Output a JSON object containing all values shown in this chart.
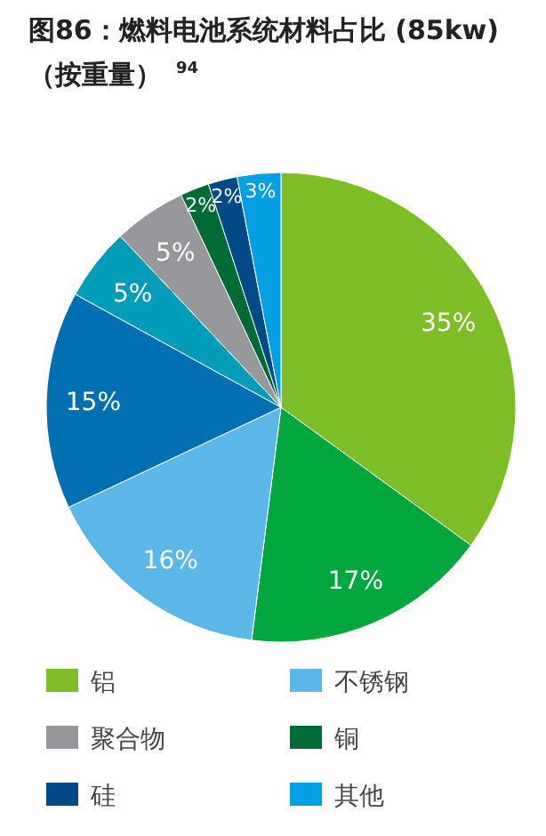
{
  "chart_data": {
    "type": "pie",
    "title": "图86：燃料电池系统材料占比 (85kw)（按重量）$^{94}$",
    "value_labels": [
      "35%",
      "17%",
      "16%",
      "15%",
      "5%",
      "5%",
      "2%",
      "2%",
      "3%"
    ],
    "legend": "bottom",
    "categories": [
      "铝",
      null,
      "不锈钢",
      null,
      null,
      "聚合物",
      "铜",
      "硅",
      "其他"
    ],
    "values": [
      35,
      17,
      16,
      15,
      5,
      5,
      2,
      2,
      3
    ],
    "colors": [
      "#7dbd26",
      "#00a73c",
      "#5bb7e8",
      "#0070b3",
      "#009cb8",
      "#96979b",
      "#006b35",
      "#004b87",
      "#00a0e2"
    ]
  }
}
